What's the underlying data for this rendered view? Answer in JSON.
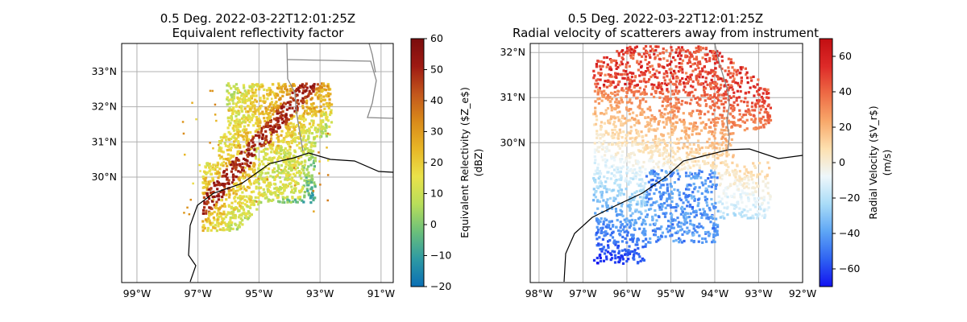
{
  "chart_data": [
    {
      "type": "heatmap",
      "title_line1": "0.5 Deg. 2022-03-22T12:01:25Z",
      "title_line2": "Equivalent reflectivity factor",
      "xlabel": "",
      "ylabel": "",
      "lon_range": [
        -99.5,
        -90.6
      ],
      "lat_range": [
        27.0,
        33.8
      ],
      "lon_ticks": [
        "99°W",
        "97°W",
        "95°W",
        "93°W",
        "91°W"
      ],
      "lon_tick_values": [
        -99,
        -97,
        -95,
        -93,
        -91
      ],
      "lat_ticks": [
        "33°N",
        "32°N",
        "31°N",
        "30°N"
      ],
      "lat_tick_values": [
        33,
        32,
        31,
        30
      ],
      "grid": true,
      "colorbar": {
        "label": "Equivalent Relectivity ($Z_e$)",
        "label_line2": "(dBZ)",
        "range": [
          -20,
          60
        ],
        "ticks": [
          "60",
          "50",
          "40",
          "30",
          "20",
          "10",
          "0",
          "−10",
          "−20"
        ],
        "tick_values": [
          60,
          50,
          40,
          30,
          20,
          10,
          0,
          -10,
          -20
        ],
        "colors": [
          "#0a6fb5",
          "#2e9aa3",
          "#6cc07a",
          "#b9de5a",
          "#eae24a",
          "#e8b626",
          "#d98a1a",
          "#c2561c",
          "#9e1a13",
          "#7a0d0d"
        ]
      }
    },
    {
      "type": "heatmap",
      "title_line1": "0.5 Deg. 2022-03-22T12:01:25Z",
      "title_line2": "Radial velocity of scatterers away from instrument",
      "xlabel": "",
      "ylabel": "",
      "lon_range": [
        -98.2,
        -92.0
      ],
      "lat_range": [
        26.9,
        32.2
      ],
      "lon_ticks": [
        "98°W",
        "97°W",
        "96°W",
        "95°W",
        "94°W",
        "93°W",
        "92°W"
      ],
      "lon_tick_values": [
        -98,
        -97,
        -96,
        -95,
        -94,
        -93,
        -92
      ],
      "lat_ticks": [
        "32°N",
        "31°N",
        "30°N"
      ],
      "lat_tick_values": [
        32,
        31,
        30
      ],
      "grid": true,
      "colorbar": {
        "label": "Radial Velocity ($V_r$)",
        "label_line2": "(m/s)",
        "range": [
          -70,
          70
        ],
        "ticks": [
          "60",
          "40",
          "20",
          "0",
          "−20",
          "−40",
          "−60"
        ],
        "tick_values": [
          60,
          40,
          20,
          0,
          -20,
          -40,
          -60
        ],
        "colors": [
          "#1212f0",
          "#2f63f2",
          "#5ea6f5",
          "#a9dcf7",
          "#eef7fb",
          "#fde0b0",
          "#f8a86a",
          "#ee6b45",
          "#dd2a28",
          "#c20e12"
        ]
      }
    }
  ]
}
